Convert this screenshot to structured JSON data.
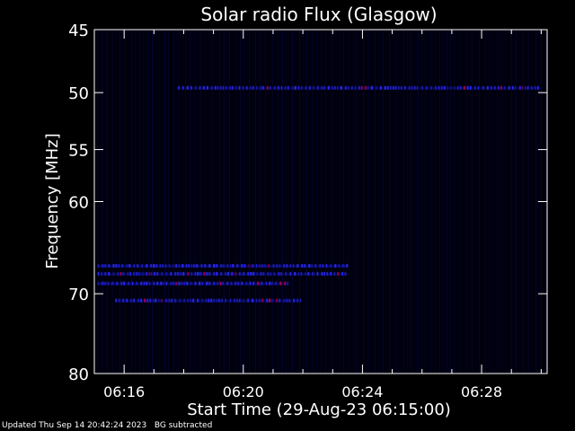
{
  "chart_data": {
    "type": "heatmap",
    "title": "Solar radio Flux (Glasgow)",
    "xlabel": "Start Time (29-Aug-23 06:15:00)",
    "ylabel": "Frequency [MHz]",
    "x_range_minutes": [
      0,
      15.2
    ],
    "y_range_mhz": [
      45,
      80
    ],
    "y_scale": "log",
    "x_ticks": [
      {
        "minute": 1,
        "label": "06:16"
      },
      {
        "minute": 5,
        "label": "06:20"
      },
      {
        "minute": 9,
        "label": "06:24"
      },
      {
        "minute": 13,
        "label": "06:28"
      }
    ],
    "y_ticks": [
      {
        "mhz": 45,
        "label": "45"
      },
      {
        "mhz": 50,
        "label": "50"
      },
      {
        "mhz": 55,
        "label": "55"
      },
      {
        "mhz": 60,
        "label": "60"
      },
      {
        "mhz": 70,
        "label": "70"
      },
      {
        "mhz": 80,
        "label": "80"
      }
    ],
    "emission": [
      {
        "mhz": 49.6,
        "t_start": 2.8,
        "t_end": 15.0,
        "intensity": 0.5
      },
      {
        "mhz": 66.8,
        "t_start": 0.1,
        "t_end": 8.5,
        "intensity": 0.7
      },
      {
        "mhz": 67.7,
        "t_start": 0.1,
        "t_end": 8.5,
        "intensity": 0.55
      },
      {
        "mhz": 68.8,
        "t_start": 0.1,
        "t_end": 6.5,
        "intensity": 0.75
      },
      {
        "mhz": 70.8,
        "t_start": 0.7,
        "t_end": 6.9,
        "intensity": 0.55
      }
    ],
    "grid": false
  },
  "colors": {
    "background": "#000000",
    "plot_bg": "#00000f",
    "axis": "#ffffff",
    "emission_low": "#1414c8",
    "emission_high": "#c00050"
  },
  "footer": {
    "updated": "Updated Thu Sep 14 20:42:24 2023",
    "note": "BG subtracted"
  }
}
